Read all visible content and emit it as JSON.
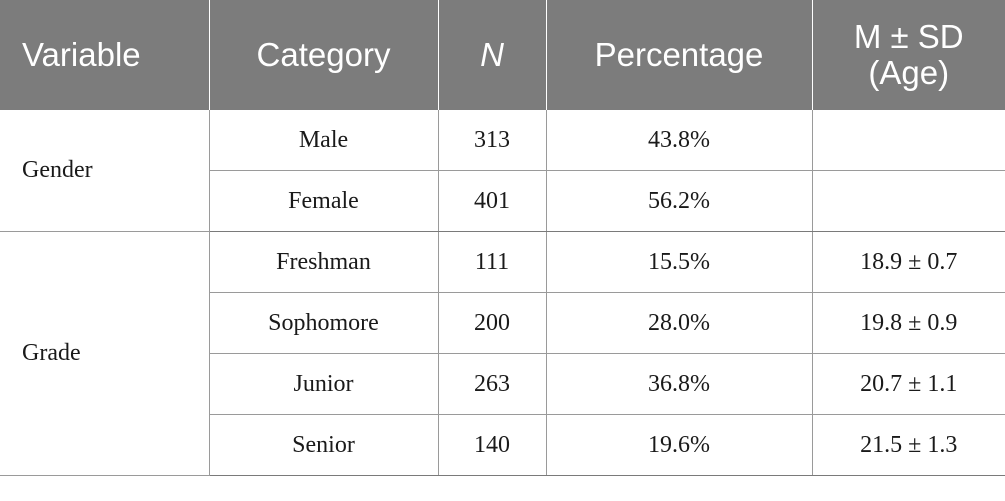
{
  "headers": {
    "variable": "Variable",
    "category": "Category",
    "n": "N",
    "percentage": "Percentage",
    "msd_line1": "M ± SD",
    "msd_line2": "(Age)"
  },
  "groups": [
    {
      "variable": "Gender",
      "rows": [
        {
          "category": "Male",
          "n": "313",
          "percentage": "43.8%",
          "msd": ""
        },
        {
          "category": "Female",
          "n": "401",
          "percentage": "56.2%",
          "msd": ""
        }
      ]
    },
    {
      "variable": "Grade",
      "rows": [
        {
          "category": "Freshman",
          "n": "111",
          "percentage": "15.5%",
          "msd": "18.9 ± 0.7"
        },
        {
          "category": "Sophomore",
          "n": "200",
          "percentage": "28.0%",
          "msd": "19.8 ± 0.9"
        },
        {
          "category": "Junior",
          "n": "263",
          "percentage": "36.8%",
          "msd": "20.7 ± 1.1"
        },
        {
          "category": "Senior",
          "n": "140",
          "percentage": "19.6%",
          "msd": "21.5 ± 1.3"
        }
      ]
    }
  ]
}
